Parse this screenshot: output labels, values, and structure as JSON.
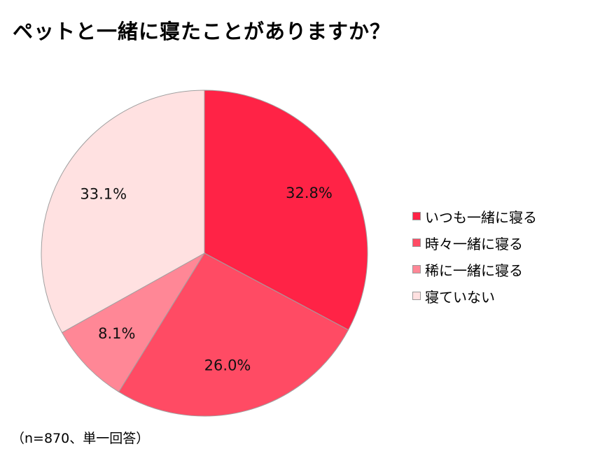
{
  "title": "ペットと一緒に寝たことがありますか？",
  "note": "（n=870、単一回答）",
  "chart_data": {
    "type": "pie",
    "title": "ペットと一緒に寝たことがありますか？",
    "start_angle_deg": 0,
    "direction": "clockwise",
    "legend_position": "right",
    "slices": [
      {
        "label": "いつも一緒に寝る",
        "value": 32.8,
        "display": "32.8%",
        "color": "#ff2346"
      },
      {
        "label": "時々一緒に寝る",
        "value": 26.0,
        "display": "26.0%",
        "color": "#ff4b64"
      },
      {
        "label": "稀に一緒に寝る",
        "value": 8.1,
        "display": "8.1%",
        "color": "#ff8796"
      },
      {
        "label": "寝ていない",
        "value": 33.1,
        "display": "33.1%",
        "color": "#ffe1e1"
      }
    ]
  }
}
